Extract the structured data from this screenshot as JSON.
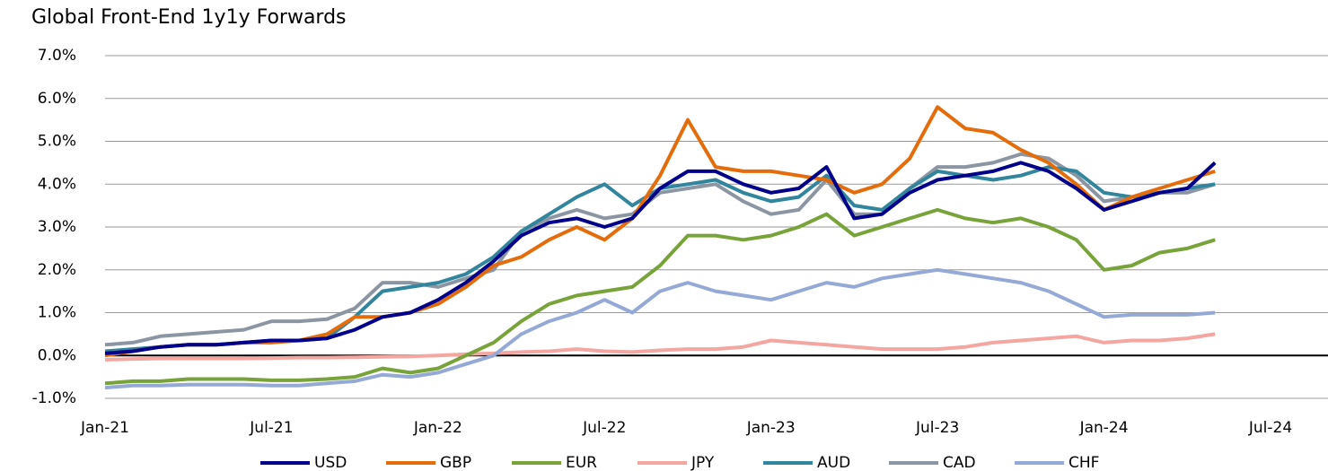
{
  "chart_data": {
    "type": "line",
    "title": "Global Front-End 1y1y Forwards",
    "categories": [
      "Jan-21",
      null,
      null,
      null,
      null,
      null,
      "Jul-21",
      null,
      null,
      null,
      null,
      null,
      "Jan-22",
      null,
      null,
      null,
      null,
      null,
      "Jul-22",
      null,
      null,
      null,
      null,
      null,
      "Jan-23",
      null,
      null,
      null,
      null,
      null,
      "Jul-23",
      null,
      null,
      null,
      null,
      null,
      "Jan-24",
      null,
      null,
      null,
      null,
      null,
      "Jul-24"
    ],
    "ylim": [
      -1,
      7
    ],
    "yticks": [
      {
        "value": -1,
        "label": "-1.0%"
      },
      {
        "value": 0,
        "label": "0.0%"
      },
      {
        "value": 1,
        "label": "1.0%"
      },
      {
        "value": 2,
        "label": "2.0%"
      },
      {
        "value": 3,
        "label": "3.0%"
      },
      {
        "value": 4,
        "label": "4.0%"
      },
      {
        "value": 5,
        "label": "5.0%"
      },
      {
        "value": 6,
        "label": "6.0%"
      },
      {
        "value": 7,
        "label": "7.0%"
      }
    ],
    "grid": true,
    "legend": "bottom",
    "series": [
      {
        "name": "USD",
        "color": "#00008b",
        "values": [
          0.05,
          0.1,
          0.2,
          0.25,
          0.25,
          0.3,
          0.35,
          0.35,
          0.4,
          0.6,
          0.9,
          1.0,
          1.3,
          1.7,
          2.2,
          2.8,
          3.1,
          3.2,
          3.0,
          3.2,
          3.9,
          4.3,
          4.3,
          4.0,
          3.8,
          3.9,
          4.4,
          3.2,
          3.3,
          3.8,
          4.1,
          4.2,
          4.3,
          4.5,
          4.3,
          3.9,
          3.4,
          3.6,
          3.8,
          3.9,
          4.5,
          null,
          null
        ]
      },
      {
        "name": "GBP",
        "color": "#e46c0a",
        "values": [
          0.0,
          0.1,
          0.2,
          0.25,
          0.25,
          0.3,
          0.3,
          0.35,
          0.5,
          0.9,
          0.9,
          1.0,
          1.2,
          1.6,
          2.1,
          2.3,
          2.7,
          3.0,
          2.7,
          3.2,
          4.2,
          5.5,
          4.4,
          4.3,
          4.3,
          4.2,
          4.1,
          3.8,
          4.0,
          4.6,
          5.8,
          5.3,
          5.2,
          4.8,
          4.5,
          4.0,
          3.4,
          3.7,
          3.9,
          4.1,
          4.3,
          null,
          null
        ]
      },
      {
        "name": "EUR",
        "color": "#77a339",
        "values": [
          -0.65,
          -0.6,
          -0.6,
          -0.55,
          -0.55,
          -0.55,
          -0.58,
          -0.58,
          -0.55,
          -0.5,
          -0.3,
          -0.4,
          -0.3,
          0.0,
          0.3,
          0.8,
          1.2,
          1.4,
          1.5,
          1.6,
          2.1,
          2.8,
          2.8,
          2.7,
          2.8,
          3.0,
          3.3,
          2.8,
          3.0,
          3.2,
          3.4,
          3.2,
          3.1,
          3.2,
          3.0,
          2.7,
          2.0,
          2.1,
          2.4,
          2.5,
          2.7,
          null,
          null
        ]
      },
      {
        "name": "JPY",
        "color": "#f4a6a0",
        "values": [
          -0.1,
          -0.08,
          -0.07,
          -0.07,
          -0.07,
          -0.07,
          -0.06,
          -0.05,
          -0.05,
          -0.04,
          -0.03,
          -0.02,
          0.0,
          0.03,
          0.05,
          0.08,
          0.1,
          0.15,
          0.1,
          0.08,
          0.12,
          0.15,
          0.15,
          0.2,
          0.35,
          0.3,
          0.25,
          0.2,
          0.15,
          0.15,
          0.15,
          0.2,
          0.3,
          0.35,
          0.4,
          0.45,
          0.3,
          0.35,
          0.35,
          0.4,
          0.5,
          null,
          null
        ]
      },
      {
        "name": "AUD",
        "color": "#31859c",
        "values": [
          0.1,
          0.15,
          0.2,
          0.25,
          0.25,
          0.3,
          0.35,
          0.35,
          0.4,
          0.9,
          1.5,
          1.6,
          1.7,
          1.9,
          2.3,
          2.9,
          3.3,
          3.7,
          4.0,
          3.5,
          3.9,
          4.0,
          4.1,
          3.8,
          3.6,
          3.7,
          4.2,
          3.5,
          3.4,
          3.9,
          4.3,
          4.2,
          4.1,
          4.2,
          4.4,
          4.3,
          3.8,
          3.7,
          3.8,
          3.9,
          4.0,
          null,
          null
        ]
      },
      {
        "name": "CAD",
        "color": "#8c96a3",
        "values": [
          0.25,
          0.3,
          0.45,
          0.5,
          0.55,
          0.6,
          0.8,
          0.8,
          0.85,
          1.1,
          1.7,
          1.7,
          1.6,
          1.8,
          2.0,
          2.9,
          3.2,
          3.4,
          3.2,
          3.3,
          3.8,
          3.9,
          4.0,
          3.6,
          3.3,
          3.4,
          4.1,
          3.3,
          3.3,
          3.9,
          4.4,
          4.4,
          4.5,
          4.7,
          4.6,
          4.2,
          3.6,
          3.7,
          3.8,
          3.8,
          4.0,
          null,
          null
        ]
      },
      {
        "name": "CHF",
        "color": "#95a9d6",
        "values": [
          -0.75,
          -0.7,
          -0.7,
          -0.68,
          -0.68,
          -0.68,
          -0.7,
          -0.7,
          -0.65,
          -0.6,
          -0.45,
          -0.5,
          -0.4,
          -0.2,
          0.0,
          0.5,
          0.8,
          1.0,
          1.3,
          1.0,
          1.5,
          1.7,
          1.5,
          1.4,
          1.3,
          1.5,
          1.7,
          1.6,
          1.8,
          1.9,
          2.0,
          1.9,
          1.8,
          1.7,
          1.5,
          1.2,
          0.9,
          0.95,
          0.95,
          0.95,
          1.0,
          null,
          null
        ]
      }
    ]
  }
}
